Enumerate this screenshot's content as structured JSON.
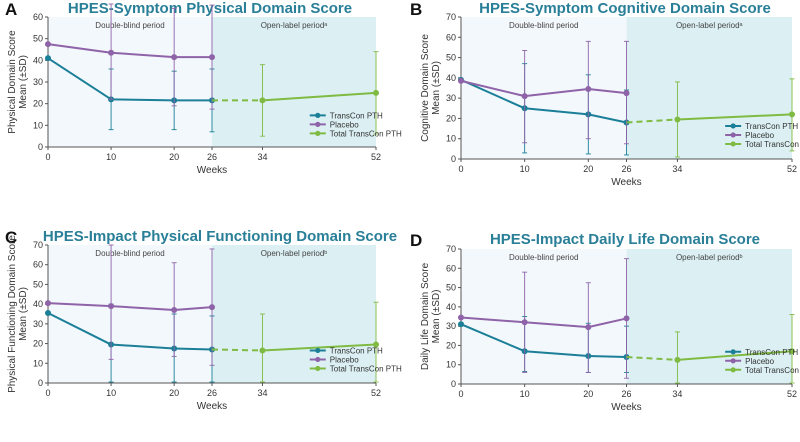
{
  "figure": {
    "colors": {
      "transcon": "#1b7f97",
      "placebo": "#8f63a8",
      "total": "#7fba42",
      "title": "#2a7f98",
      "period_blind": "#f3f8fd",
      "period_open": "#dcf0f4"
    }
  },
  "chart_data": [
    {
      "type": "line",
      "letter": "A",
      "title": "HPES-Symptom Physical Domain Score",
      "ylabel_lines": [
        "Physical Domain Score",
        "Mean (±SD)"
      ],
      "xlabel": "Weeks",
      "ylim": [
        0,
        60
      ],
      "yticks": [
        0,
        10,
        20,
        30,
        40,
        50,
        60
      ],
      "xticks": [
        0,
        10,
        20,
        26,
        34,
        52
      ],
      "xlim": [
        0,
        52
      ],
      "period_labels": {
        "double_blind": "Double-blind period",
        "open_label": "Open-label periodᵃ"
      },
      "series": [
        {
          "name": "TransCon PTH",
          "color": "#1b7f97",
          "x": [
            0,
            10,
            20,
            26
          ],
          "values": [
            41.0,
            22.0,
            21.5,
            21.5
          ],
          "err_upper": [
            41.0,
            36.0,
            35.0,
            36.0
          ],
          "err_lower": [
            41.0,
            8.0,
            8.0,
            7.0
          ]
        },
        {
          "name": "Placebo",
          "color": "#8f63a8",
          "x": [
            0,
            10,
            20,
            26
          ],
          "values": [
            47.5,
            43.5,
            41.5,
            41.5
          ],
          "err_upper": [
            47.5,
            66.0,
            64.0,
            65.5
          ],
          "err_lower": [
            47.5,
            22.0,
            19.0,
            17.5
          ]
        },
        {
          "name": "Total TransCon PTH",
          "color": "#7fba42",
          "x": [
            26,
            34,
            52
          ],
          "values": [
            21.5,
            21.5,
            25.0
          ],
          "err_upper": [
            21.5,
            38.0,
            44.0
          ],
          "err_lower": [
            21.5,
            5.0,
            6.0
          ],
          "dashed_to": 34
        }
      ]
    },
    {
      "type": "line",
      "letter": "B",
      "title": "HPES-Symptom Cognitive Domain Score",
      "ylabel_lines": [
        "Cognitive Domain Score",
        "Mean (±SD)"
      ],
      "xlabel": "Weeks",
      "ylim": [
        0,
        70
      ],
      "yticks": [
        0,
        10,
        20,
        30,
        40,
        50,
        60,
        70
      ],
      "xticks": [
        0,
        10,
        20,
        26,
        34,
        52
      ],
      "xlim": [
        0,
        52
      ],
      "period_labels": {
        "double_blind": "Double-blind period",
        "open_label": "Open-label periodᵃ"
      },
      "series": [
        {
          "name": "TransCon PTH",
          "color": "#1b7f97",
          "x": [
            0,
            10,
            20,
            26
          ],
          "values": [
            39.0,
            25.0,
            22.0,
            18.0
          ],
          "err_upper": [
            39.0,
            47.0,
            41.5,
            34.0
          ],
          "err_lower": [
            39.0,
            3.0,
            2.5,
            2.0
          ]
        },
        {
          "name": "Placebo",
          "color": "#8f63a8",
          "x": [
            0,
            10,
            20,
            26
          ],
          "values": [
            38.5,
            31.0,
            34.5,
            32.5
          ],
          "err_upper": [
            38.5,
            53.5,
            58.0,
            58.0
          ],
          "err_lower": [
            38.5,
            8.0,
            10.0,
            7.5
          ]
        },
        {
          "name": "Total TransCon PTH",
          "color": "#7fba42",
          "x": [
            26,
            34,
            52
          ],
          "values": [
            18.0,
            19.5,
            22.0
          ],
          "err_upper": [
            18.0,
            38.0,
            39.5
          ],
          "err_lower": [
            18.0,
            1.0,
            4.0
          ],
          "dashed_to": 34
        }
      ]
    },
    {
      "type": "line",
      "letter": "C",
      "title": "HPES-Impact Physical Functioning Domain Score",
      "ylabel_lines": [
        "Physical Functioning Domain Score",
        "Mean (±SD)"
      ],
      "xlabel": "Weeks",
      "ylim": [
        0,
        70
      ],
      "yticks": [
        0,
        10,
        20,
        30,
        40,
        50,
        60,
        70
      ],
      "xticks": [
        0,
        10,
        20,
        26,
        34,
        52
      ],
      "xlim": [
        0,
        52
      ],
      "period_labels": {
        "double_blind": "Double-blind period",
        "open_label": "Open-label periodᵇ"
      },
      "series": [
        {
          "name": "TransCon PTH",
          "color": "#1b7f97",
          "x": [
            0,
            10,
            20,
            26
          ],
          "values": [
            35.5,
            19.5,
            17.5,
            17.0
          ],
          "err_upper": [
            35.5,
            40.0,
            35.0,
            34.0
          ],
          "err_lower": [
            35.5,
            0.5,
            0.5,
            0.5
          ]
        },
        {
          "name": "Placebo",
          "color": "#8f63a8",
          "x": [
            0,
            10,
            20,
            26
          ],
          "values": [
            40.5,
            39.0,
            37.0,
            38.5
          ],
          "err_upper": [
            40.5,
            70.0,
            61.0,
            68.0
          ],
          "err_lower": [
            40.5,
            12.0,
            13.5,
            9.0
          ]
        },
        {
          "name": "Total TransCon PTH",
          "color": "#7fba42",
          "x": [
            26,
            34,
            52
          ],
          "values": [
            17.0,
            16.5,
            19.5
          ],
          "err_upper": [
            17.0,
            35.0,
            41.0
          ],
          "err_lower": [
            17.0,
            0.5,
            0.5
          ],
          "dashed_to": 34
        }
      ]
    },
    {
      "type": "line",
      "letter": "D",
      "title": "HPES-Impact Daily Life Domain Score",
      "ylabel_lines": [
        "Daily Life Domain Score",
        "Mean (±SD)"
      ],
      "xlabel": "Weeks",
      "ylim": [
        0,
        70
      ],
      "yticks": [
        0,
        10,
        20,
        30,
        40,
        50,
        60,
        70
      ],
      "xticks": [
        0,
        10,
        20,
        26,
        34,
        52
      ],
      "xlim": [
        0,
        52
      ],
      "period_labels": {
        "double_blind": "Double-blind period",
        "open_label": "Open-label periodᵇ"
      },
      "series": [
        {
          "name": "TransCon PTH",
          "color": "#1b7f97",
          "x": [
            0,
            10,
            20,
            26
          ],
          "values": [
            31.0,
            17.0,
            14.5,
            14.0
          ],
          "err_upper": [
            31.0,
            35.0,
            31.5,
            30.0
          ],
          "err_lower": [
            31.0,
            6.5,
            6.0,
            6.0
          ]
        },
        {
          "name": "Placebo",
          "color": "#8f63a8",
          "x": [
            0,
            10,
            20,
            26
          ],
          "values": [
            34.5,
            32.0,
            29.5,
            34.0
          ],
          "err_upper": [
            34.5,
            58.0,
            52.5,
            65.0
          ],
          "err_lower": [
            34.5,
            6.0,
            6.0,
            3.0
          ]
        },
        {
          "name": "Total TransCon PTH",
          "color": "#7fba42",
          "x": [
            26,
            34,
            52
          ],
          "values": [
            14.0,
            12.5,
            17.0
          ],
          "err_upper": [
            14.0,
            27.0,
            36.0
          ],
          "err_lower": [
            14.0,
            0.5,
            0.5
          ],
          "dashed_to": 34
        }
      ]
    }
  ]
}
